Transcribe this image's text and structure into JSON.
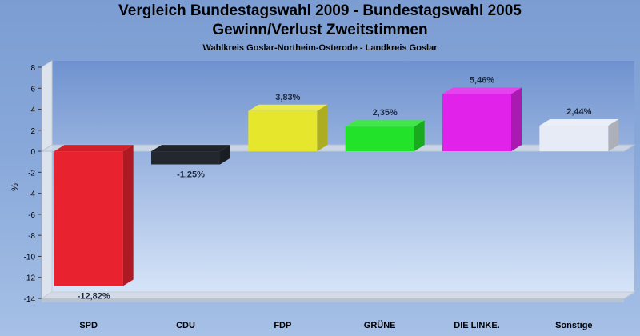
{
  "chart_data": {
    "type": "bar",
    "title": "Vergleich Bundestagswahl 2009 - Bundestagswahl 2005",
    "subtitle_1": "Gewinn/Verlust Zweitstimmen",
    "subtitle_2": "Wahlkreis Goslar-Northeim-Osterode - Landkreis Goslar",
    "ylabel": "%",
    "xlabel": "",
    "categories": [
      "SPD",
      "CDU",
      "FDP",
      "GRÜNE",
      "DIE LINKE.",
      "Sonstige"
    ],
    "values": [
      -12.82,
      -1.25,
      3.83,
      2.35,
      5.46,
      2.44
    ],
    "value_labels": [
      "-12,82%",
      "-1,25%",
      "3,83%",
      "2,35%",
      "5,46%",
      "2,44%"
    ],
    "colors": [
      "#e8232f",
      "#23272e",
      "#e6e62c",
      "#22e22a",
      "#e022ea",
      "#e6ebf6"
    ],
    "ylim": [
      -14,
      8
    ],
    "yticks": [
      8,
      6,
      4,
      2,
      0,
      -2,
      -4,
      -6,
      -8,
      -10,
      -12,
      -14
    ],
    "grid": false,
    "legend": "none"
  }
}
